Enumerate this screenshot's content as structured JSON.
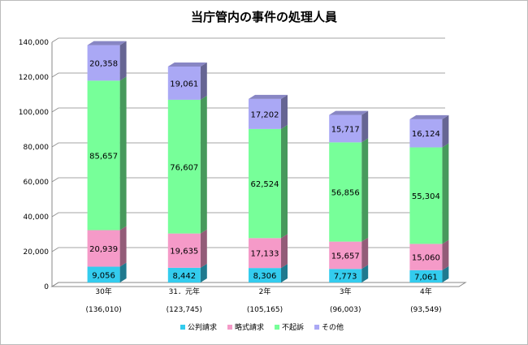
{
  "chart_data": {
    "type": "bar",
    "stacked": true,
    "title": "当庁管内の事件の処理人員",
    "categories": [
      "30年",
      "31．元年",
      "2年",
      "3年",
      "4年"
    ],
    "x_sublabels": [
      "(136,010)",
      "(123,745)",
      "(105,165)",
      "(96,003)",
      "(93,549)"
    ],
    "series": [
      {
        "name": "公判請求",
        "color": "#33ccee",
        "values": [
          9056,
          8442,
          8306,
          7773,
          7061
        ],
        "value_labels": [
          "9,056",
          "8,442",
          "8,306",
          "7,773",
          "7,061"
        ]
      },
      {
        "name": "略式請求",
        "color": "#f59ac8",
        "values": [
          20939,
          19635,
          17133,
          15657,
          15060
        ],
        "value_labels": [
          "20,939",
          "19,635",
          "17,133",
          "15,657",
          "15,060"
        ]
      },
      {
        "name": "不起訴",
        "color": "#77ff99",
        "values": [
          85657,
          76607,
          62524,
          56856,
          55304
        ],
        "value_labels": [
          "85,657",
          "76,607",
          "62,524",
          "56,856",
          "55,304"
        ]
      },
      {
        "name": "その他",
        "color": "#aaa8f5",
        "values": [
          20358,
          19061,
          17202,
          15717,
          16124
        ],
        "value_labels": [
          "20,358",
          "19,061",
          "17,202",
          "15,717",
          "16,124"
        ]
      }
    ],
    "ylim": [
      0,
      140000
    ],
    "yticks": [
      0,
      {
        "value": 20000,
        "label": "20,000"
      },
      {
        "value": 40000,
        "label": "40,000"
      },
      {
        "value": 60000,
        "label": "60,000"
      },
      {
        "value": 80000,
        "label": "80,000"
      },
      {
        "value": 100000,
        "label": "100,000"
      },
      {
        "value": 120000,
        "label": "120,000"
      },
      {
        "value": 140000,
        "label": "140,000"
      }
    ],
    "grid": true,
    "legend": "bottom"
  }
}
